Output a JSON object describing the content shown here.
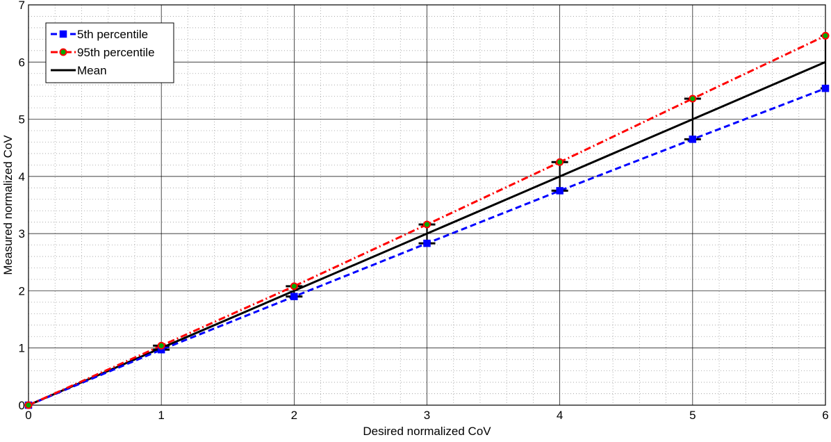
{
  "chart_data": {
    "type": "line",
    "title": "",
    "xlabel": "Desired normalized CoV",
    "ylabel": "Measured normalized CoV",
    "xlim": [
      0,
      6
    ],
    "ylim": [
      0,
      7
    ],
    "xticks": [
      "0",
      "1",
      "2",
      "3",
      "4",
      "5",
      "6"
    ],
    "yticks": [
      "0",
      "1",
      "2",
      "3",
      "4",
      "5",
      "6",
      "7"
    ],
    "grid": true,
    "minor_grid": true,
    "legend_position": "top-left",
    "x": [
      0,
      1,
      2,
      3,
      4,
      5,
      6
    ],
    "series": [
      {
        "name": "5th percentile",
        "values": [
          0,
          0.97,
          1.9,
          2.83,
          3.75,
          4.65,
          5.54
        ],
        "color": "#0000ff",
        "line_style": "dashed",
        "marker": "square"
      },
      {
        "name": "95th percentile",
        "values": [
          0,
          1.04,
          2.08,
          3.16,
          4.25,
          5.36,
          6.46
        ],
        "color": "#ff0000",
        "line_style": "dash-dot",
        "marker": "circle",
        "marker_fill": "#00aa00"
      },
      {
        "name": "Mean",
        "values": [
          0,
          1,
          2,
          3,
          4,
          5,
          6
        ],
        "color": "#000000",
        "line_style": "solid",
        "marker": "none"
      }
    ],
    "error_bars": {
      "color": "#000000",
      "lower": [
        0,
        0.97,
        1.9,
        2.83,
        3.75,
        4.65,
        5.54
      ],
      "upper": [
        0,
        1.04,
        2.08,
        3.16,
        4.25,
        5.36,
        6.46
      ]
    }
  }
}
